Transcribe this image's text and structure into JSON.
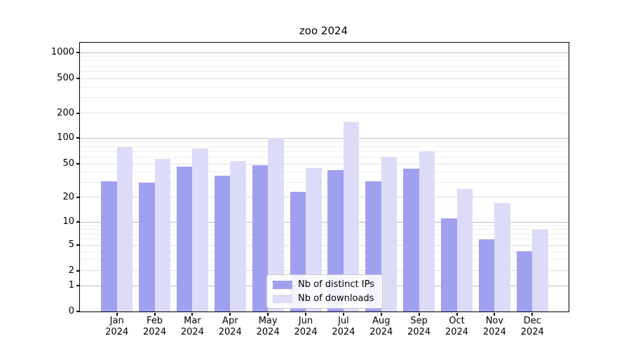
{
  "title": "zoo 2024",
  "chart_data": {
    "type": "bar",
    "title": "zoo 2024",
    "categories": [
      "Jan 2024",
      "Feb 2024",
      "Mar 2024",
      "Apr 2024",
      "May 2024",
      "Jun 2024",
      "Jul 2024",
      "Aug 2024",
      "Sep 2024",
      "Oct 2024",
      "Nov 2024",
      "Dec 2024"
    ],
    "series": [
      {
        "name": "Nb of distinct IPs",
        "color": "#a0a0f0",
        "values": [
          31,
          30,
          47,
          36,
          48,
          23,
          42,
          31,
          44,
          11,
          6,
          4
        ]
      },
      {
        "name": "Nb of downloads",
        "color": "#dcdcf8",
        "values": [
          78,
          57,
          75,
          54,
          100,
          45,
          158,
          60,
          70,
          25,
          17,
          8
        ]
      }
    ],
    "xlabel": "",
    "ylabel": "",
    "yscale": "log-like (symlog, zero shown)",
    "yticks": [
      0,
      1,
      2,
      5,
      10,
      20,
      50,
      100,
      200,
      500,
      1000
    ],
    "ylim": [
      0,
      1000
    ],
    "grid": true,
    "legend_position": "lower center"
  }
}
